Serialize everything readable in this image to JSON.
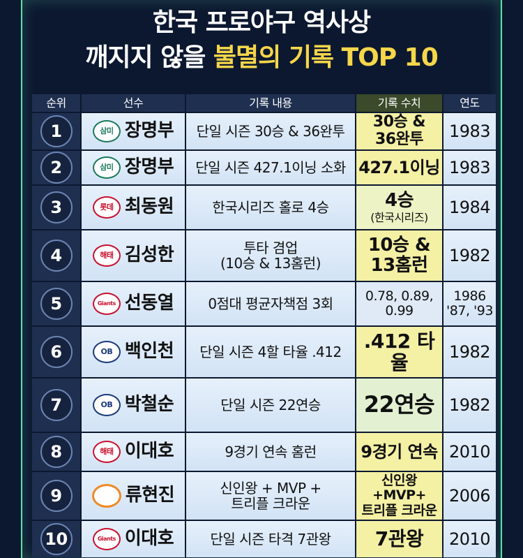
{
  "header": {
    "title": [
      "한국 프로야구 역사상",
      "깨지지 않을",
      "불멸의 기록 TOP 10"
    ]
  },
  "table": {
    "columns": [
      "순위",
      "선수",
      "기록 내용",
      "기록 수치",
      "연도"
    ],
    "rows": [
      {
        "rank": 1,
        "team": "삼미",
        "player": "장명부",
        "record": [
          "단일 시즌 30승 & 36완투"
        ],
        "value": [
          "30승 &",
          "36완투"
        ],
        "year": [
          "1983"
        ]
      },
      {
        "rank": 2,
        "team": "삼미",
        "player": "장명부",
        "record": [
          "단일 시즌 427.1이닝 소화"
        ],
        "value": [
          "427.1이닝"
        ],
        "year": [
          "1983"
        ]
      },
      {
        "rank": 3,
        "team": "롯데",
        "player": "최동원",
        "record": [
          "한국시리즈 홀로 4승"
        ],
        "value": [
          "4승",
          "(한국시리즈)"
        ],
        "year": [
          "1984"
        ]
      },
      {
        "rank": 4,
        "team": "해태",
        "player": "김성한",
        "record": [
          "투타 겸업",
          "(10승 & 13홈런)"
        ],
        "value": [
          "10승 &",
          "13홈런"
        ],
        "year": [
          "1982"
        ]
      },
      {
        "rank": 5,
        "team": "Giants",
        "player": "선동열",
        "record": [
          "0점대 평균자책점 3회"
        ],
        "value": [
          "0.78, 0.89,",
          "0.99"
        ],
        "year": [
          "1986",
          "'87, '93"
        ]
      },
      {
        "rank": 6,
        "team": "OB",
        "player": "백인천",
        "record": [
          "단일 시즌 4할 타율 .412"
        ],
        "value": [
          ".412 타율"
        ],
        "year": [
          "1982"
        ]
      },
      {
        "rank": 7,
        "team": "OB",
        "player": "박철순",
        "record": [
          "단일 시즌 22연승"
        ],
        "value": [
          "22연승"
        ],
        "year": [
          "1982"
        ]
      },
      {
        "rank": 8,
        "team": "해태",
        "player": "이대호",
        "record": [
          "9경기 연속 홈런"
        ],
        "value": [
          "9경기 연속"
        ],
        "year": [
          "2010"
        ]
      },
      {
        "rank": 9,
        "player": "류현진",
        "record": [
          "신인왕 + MVP +",
          "트리플 크라운"
        ],
        "value": [
          "신인왕+MVP+",
          "트리플 크라운"
        ],
        "year": [
          "2006"
        ]
      },
      {
        "rank": 10,
        "team": "Giants",
        "player": "이대호",
        "record": [
          "단일 시즌 타격 7관왕"
        ],
        "value": [
          "7관왕"
        ],
        "year": [
          "2010"
        ]
      }
    ]
  }
}
